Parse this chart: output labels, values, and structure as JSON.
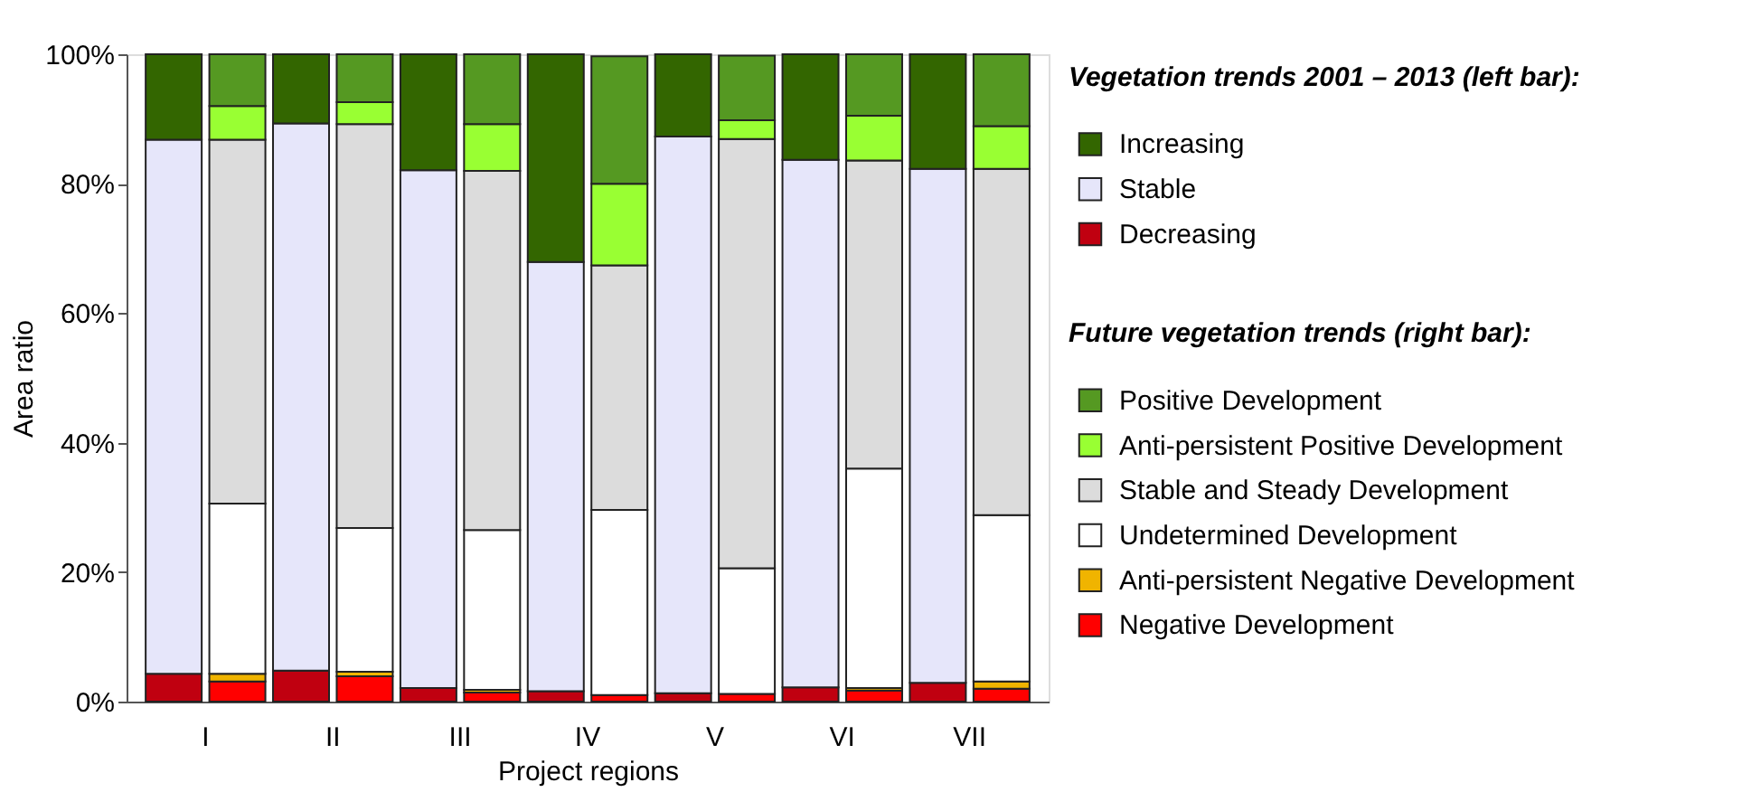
{
  "chart_data": {
    "type": "bar",
    "stacked": true,
    "categories": [
      "I",
      null,
      "II",
      null,
      "III",
      null,
      "IV",
      null,
      "V",
      null,
      "VI",
      null,
      "VII",
      null
    ],
    "xlabel": "Project regions",
    "ylabel": "Area ratio",
    "legend_title": [
      "Vegetation trends 2001 – 2013 (left bar):",
      "Future vegetation trends (right bar):"
    ],
    "ylim": [
      0,
      100
    ],
    "yticks": [
      {
        "value": 0,
        "label": "0%"
      },
      {
        "value": 20,
        "label": "20%"
      },
      {
        "value": 40,
        "label": "40%"
      },
      {
        "value": 60,
        "label": "60%"
      },
      {
        "value": 80,
        "label": "80%"
      },
      {
        "value": 100,
        "label": "100%"
      }
    ],
    "grid": false,
    "legend": "right",
    "series": [
      {
        "name": "Decreasing",
        "color": "#c00010",
        "values": [
          4.3,
          null,
          4.8,
          null,
          2.1,
          null,
          1.6,
          null,
          1.3,
          null,
          2.2,
          null,
          2.9,
          null
        ]
      },
      {
        "name": "Stable",
        "color": "#e6e6fa",
        "values": [
          82.5,
          null,
          84.5,
          null,
          80.0,
          null,
          66.3,
          null,
          86.0,
          null,
          81.5,
          null,
          79.4,
          null
        ]
      },
      {
        "name": "Increasing",
        "color": "#336600",
        "values": [
          13.2,
          null,
          10.7,
          null,
          17.9,
          null,
          32.1,
          null,
          12.7,
          null,
          16.3,
          null,
          17.7,
          null
        ]
      },
      {
        "name": "Negative Development",
        "color": "#ff0000",
        "values": [
          null,
          3.1,
          null,
          3.9,
          null,
          1.4,
          null,
          1.0,
          null,
          1.2,
          null,
          1.7,
          null,
          2.0
        ]
      },
      {
        "name": "Anti-persistent Negative Development",
        "color": "#f0b400",
        "values": [
          null,
          1.2,
          null,
          0.7,
          null,
          0.4,
          null,
          null,
          null,
          null,
          null,
          0.4,
          null,
          1.1
        ]
      },
      {
        "name": "Undetermined Development",
        "color": "#ffffff",
        "values": [
          null,
          26.3,
          null,
          22.2,
          null,
          24.7,
          null,
          28.6,
          null,
          19.4,
          null,
          33.9,
          null,
          25.7
        ]
      },
      {
        "name": "Stable and Steady Development",
        "color": "#dcdcdc",
        "values": [
          null,
          56.2,
          null,
          62.4,
          null,
          55.5,
          null,
          37.8,
          null,
          66.3,
          null,
          47.6,
          null,
          53.5
        ]
      },
      {
        "name": "Anti-persistent Positive Development",
        "color": "#99ff33",
        "values": [
          null,
          5.2,
          null,
          3.4,
          null,
          7.2,
          null,
          12.6,
          null,
          2.9,
          null,
          6.9,
          null,
          6.6
        ]
      },
      {
        "name": "Positive Development",
        "color": "#559922",
        "values": [
          null,
          8.0,
          null,
          7.4,
          null,
          10.8,
          null,
          19.7,
          null,
          10.0,
          null,
          9.5,
          null,
          11.1
        ]
      }
    ]
  }
}
